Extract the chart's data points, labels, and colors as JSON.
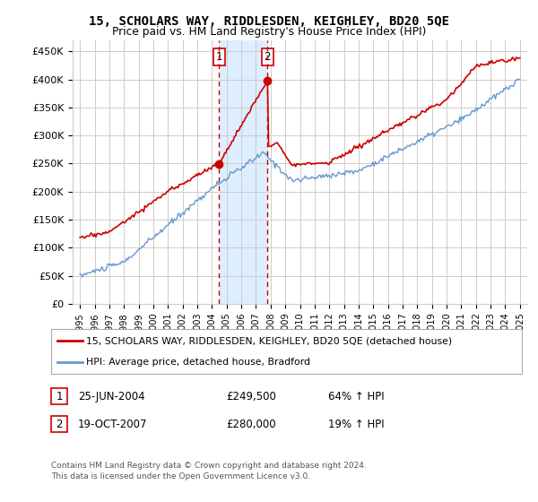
{
  "title1": "15, SCHOLARS WAY, RIDDLESDEN, KEIGHLEY, BD20 5QE",
  "title2": "Price paid vs. HM Land Registry's House Price Index (HPI)",
  "ylabel_ticks": [
    "£0",
    "£50K",
    "£100K",
    "£150K",
    "£200K",
    "£250K",
    "£300K",
    "£350K",
    "£400K",
    "£450K"
  ],
  "ytick_vals": [
    0,
    50000,
    100000,
    150000,
    200000,
    250000,
    300000,
    350000,
    400000,
    450000
  ],
  "ylim": [
    0,
    470000
  ],
  "xlim_start": 1994.5,
  "xlim_end": 2025.5,
  "xtick_years": [
    1995,
    1996,
    1997,
    1998,
    1999,
    2000,
    2001,
    2002,
    2003,
    2004,
    2005,
    2006,
    2007,
    2008,
    2009,
    2010,
    2011,
    2012,
    2013,
    2014,
    2015,
    2016,
    2017,
    2018,
    2019,
    2020,
    2021,
    2022,
    2023,
    2024,
    2025
  ],
  "sale1_x": 2004.48,
  "sale1_y": 249500,
  "sale2_x": 2007.79,
  "sale2_y": 280000,
  "legend_line1": "15, SCHOLARS WAY, RIDDLESDEN, KEIGHLEY, BD20 5QE (detached house)",
  "legend_line2": "HPI: Average price, detached house, Bradford",
  "table_row1": [
    "1",
    "25-JUN-2004",
    "£249,500",
    "64% ↑ HPI"
  ],
  "table_row2": [
    "2",
    "19-OCT-2007",
    "£280,000",
    "19% ↑ HPI"
  ],
  "footnote1": "Contains HM Land Registry data © Crown copyright and database right 2024.",
  "footnote2": "This data is licensed under the Open Government Licence v3.0.",
  "red_color": "#cc0000",
  "blue_color": "#6699cc",
  "shade_color": "#ddeeff",
  "background_color": "#ffffff",
  "grid_color": "#cccccc"
}
